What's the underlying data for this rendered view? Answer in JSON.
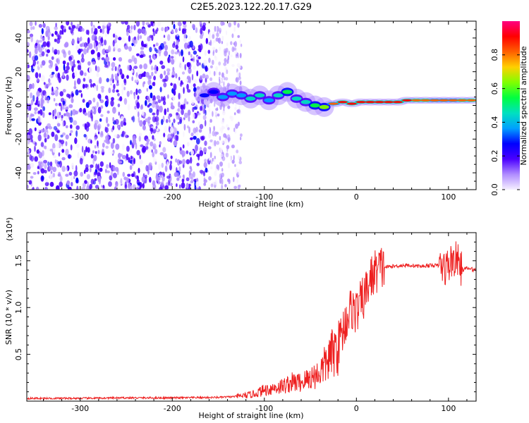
{
  "title": "C2E5.2023.122.20.17.G29",
  "chart_data": [
    {
      "type": "heatmap",
      "xlabel": "Height of straight line (km)",
      "ylabel": "Frequency (Hz)",
      "xlim": [
        -358,
        130
      ],
      "ylim": [
        -50,
        50
      ],
      "x_ticks": [
        -300,
        -200,
        -100,
        0,
        100
      ],
      "x_tick_labels": [
        "-300",
        "-200",
        "-100",
        "0",
        "100"
      ],
      "y_ticks": [
        40,
        20,
        0,
        -20,
        -40
      ],
      "y_tick_labels": [
        "40",
        "20",
        "0",
        "-20",
        "-40"
      ],
      "colorbar": {
        "label": "Normalized spectral amplitude",
        "range": [
          0,
          1
        ],
        "ticks": [
          0.0,
          0.2,
          0.4,
          0.6,
          0.8
        ],
        "tick_labels": [
          "0.0",
          "0.2",
          "0.4",
          "0.6",
          "0.8"
        ],
        "colors": [
          "#f6f0ff",
          "#b08cff",
          "#4b00ff",
          "#0000ff",
          "#00a0ff",
          "#00e0c0",
          "#00ff40",
          "#80ff00",
          "#ffd000",
          "#ff6000",
          "#ff0000",
          "#ff0080"
        ]
      },
      "ridge": {
        "x": [
          -165,
          -155,
          -145,
          -135,
          -125,
          -115,
          -105,
          -95,
          -85,
          -75,
          -65,
          -55,
          -45,
          -35,
          -25,
          -15,
          -5,
          5,
          15,
          25,
          35,
          45,
          55,
          65,
          75,
          85,
          95,
          105,
          115,
          125
        ],
        "frequency": [
          6,
          8,
          5,
          7,
          6,
          4,
          6,
          3,
          6,
          8,
          4,
          2,
          0,
          -1,
          1,
          2,
          1,
          2,
          2,
          2,
          2,
          2,
          3,
          3,
          3,
          3,
          3,
          3,
          3,
          3
        ],
        "amplitude": [
          0.25,
          0.3,
          0.35,
          0.35,
          0.4,
          0.45,
          0.45,
          0.4,
          0.45,
          0.5,
          0.45,
          0.45,
          0.5,
          0.6,
          0.8,
          0.9,
          0.9,
          0.9,
          0.95,
          0.95,
          0.95,
          0.9,
          0.9,
          0.85,
          0.85,
          0.8,
          0.8,
          0.8,
          0.85,
          0.85
        ]
      }
    },
    {
      "type": "line",
      "xlabel": "Height of straight line (km)",
      "ylabel": "SNR (10 * v/v)",
      "scale_label": "(x10⁴)",
      "xlim": [
        -358,
        130
      ],
      "ylim": [
        0,
        1.8
      ],
      "x_ticks": [
        -300,
        -200,
        -100,
        0,
        100
      ],
      "x_tick_labels": [
        "-300",
        "-200",
        "-100",
        "0",
        "100"
      ],
      "y_ticks": [
        0.5,
        1.0,
        1.5
      ],
      "y_tick_labels": [
        "0.5",
        "1.0",
        "1.5"
      ],
      "color": "#ee2020",
      "series": [
        {
          "x": [
            -358,
            -300,
            -250,
            -200,
            -150,
            -130,
            -120,
            -110,
            -100,
            -90,
            -80,
            -70,
            -60,
            -50,
            -40,
            -30,
            -20,
            -15,
            -10,
            -5,
            0,
            5,
            10,
            15,
            20,
            25,
            30,
            40,
            50,
            60,
            70,
            80,
            90,
            95,
            100,
            105,
            110,
            115,
            120,
            130
          ],
          "values": [
            0.03,
            0.03,
            0.035,
            0.035,
            0.04,
            0.05,
            0.06,
            0.08,
            0.12,
            0.14,
            0.16,
            0.2,
            0.2,
            0.25,
            0.3,
            0.45,
            0.6,
            0.75,
            0.9,
            1.0,
            0.95,
            1.05,
            1.15,
            1.3,
            1.38,
            1.42,
            1.43,
            1.44,
            1.45,
            1.45,
            1.44,
            1.45,
            1.45,
            1.42,
            1.45,
            1.52,
            1.5,
            1.4,
            1.42,
            1.4
          ]
        }
      ]
    }
  ]
}
